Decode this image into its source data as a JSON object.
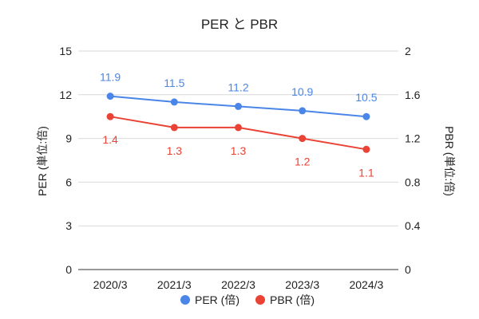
{
  "chart_data": {
    "type": "line",
    "title": "PER と PBR",
    "categories": [
      "2020/3",
      "2021/3",
      "2022/3",
      "2023/3",
      "2024/3"
    ],
    "series": [
      {
        "name": "PER (倍)",
        "axis": "left",
        "color": "#4a86e8",
        "values": [
          11.9,
          11.5,
          11.2,
          10.9,
          10.5
        ],
        "labels": [
          "11.9",
          "11.5",
          "11.2",
          "10.9",
          "10.5"
        ],
        "label_position": "above"
      },
      {
        "name": "PBR (倍)",
        "axis": "right",
        "color": "#ea4335",
        "values": [
          1.4,
          1.3,
          1.3,
          1.2,
          1.1
        ],
        "labels": [
          "1.4",
          "1.3",
          "1.3",
          "1.2",
          "1.1"
        ],
        "label_position": "below"
      }
    ],
    "y_left": {
      "label": "PER (単位:倍)",
      "min": 0,
      "max": 15,
      "ticks": [
        "0",
        "3",
        "6",
        "9",
        "12",
        "15"
      ]
    },
    "y_right": {
      "label": "PBR (単位:倍)",
      "min": 0,
      "max": 2,
      "ticks": [
        "0",
        "0.4",
        "0.8",
        "1.2",
        "1.6",
        "2"
      ]
    },
    "grid": true,
    "legend_position": "bottom"
  }
}
